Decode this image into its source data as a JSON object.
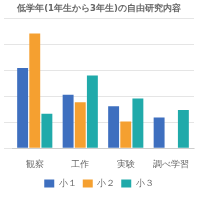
{
  "chart_data": {
    "type": "bar",
    "title": "低学年(1年生から3年生)の自由研究内容",
    "categories": [
      "観察",
      "工作",
      "実験",
      "調べ学習"
    ],
    "series": [
      {
        "name": "小１",
        "color": "#3E6FBF",
        "values": [
          42,
          28,
          22,
          16
        ]
      },
      {
        "name": "小２",
        "color": "#F5A030",
        "values": [
          60,
          24,
          14,
          0
        ]
      },
      {
        "name": "小３",
        "color": "#20AAAA",
        "values": [
          18,
          38,
          26,
          20
        ]
      }
    ],
    "ylim": [
      0,
      68
    ],
    "yticks": [
      0,
      13.6,
      27.2,
      40.8,
      54.4,
      68
    ],
    "grid": true,
    "legend": "bottom",
    "tick_labels": "x"
  }
}
